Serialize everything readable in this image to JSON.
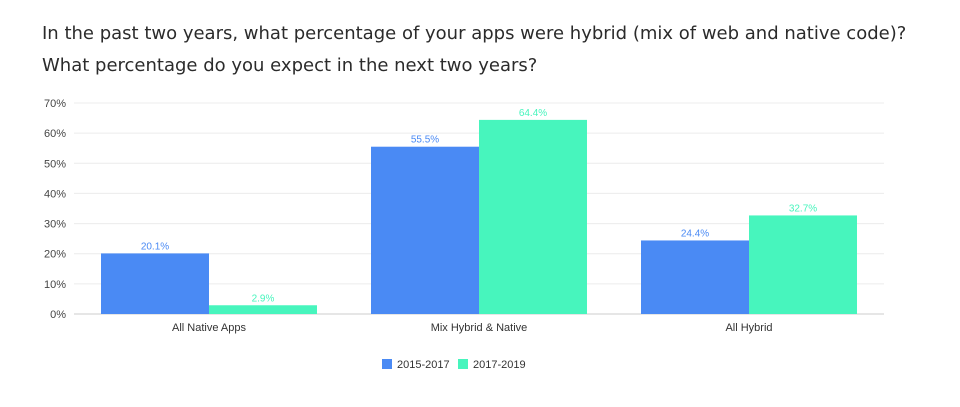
{
  "title_lines": [
    "In the past two years, what percentage of your apps were hybrid (mix of web and native code)?",
    "What percentage do you expect in the next two years?"
  ],
  "chart_data": {
    "type": "bar",
    "categories": [
      "All Native Apps",
      "Mix Hybrid & Native",
      "All Hybrid"
    ],
    "series": [
      {
        "name": "2015-2017",
        "color": "#4a8af4",
        "values": [
          20.1,
          55.5,
          24.4
        ],
        "labels": [
          "20.1%",
          "55.5%",
          "24.4%"
        ]
      },
      {
        "name": "2017-2019",
        "color": "#47f5bd",
        "values": [
          2.9,
          64.4,
          32.7
        ],
        "labels": [
          "2.9%",
          "64.4%",
          "32.7%"
        ]
      }
    ],
    "ylim": [
      0,
      70
    ],
    "yticks": [
      0,
      10,
      20,
      30,
      40,
      50,
      60,
      70
    ],
    "ytick_labels": [
      "0%",
      "10%",
      "20%",
      "30%",
      "40%",
      "50%",
      "60%",
      "70%"
    ],
    "grid": true,
    "legend_position": "bottom-center"
  }
}
